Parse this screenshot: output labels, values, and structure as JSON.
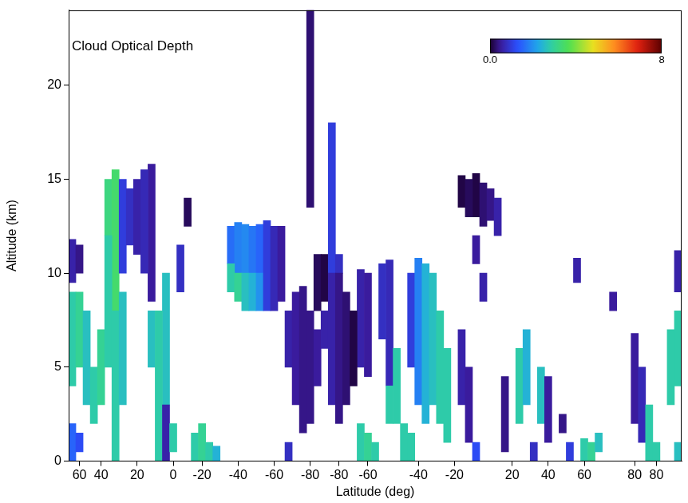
{
  "chart_data": {
    "type": "heatmap",
    "title": "Cloud Optical Depth",
    "x_label": "Latitude (deg)",
    "y_label": "Altitude (km)",
    "categories": [
      null,
      "60",
      null,
      null,
      "40",
      null,
      null,
      null,
      null,
      "20",
      null,
      null,
      null,
      null,
      "0",
      null,
      null,
      null,
      "-20",
      null,
      null,
      null,
      null,
      "-40",
      null,
      null,
      null,
      null,
      "-60",
      null,
      null,
      null,
      null,
      "-80",
      null,
      null,
      null,
      "-80",
      null,
      null,
      null,
      "-60",
      null,
      null,
      null,
      null,
      null,
      null,
      "-40",
      null,
      null,
      null,
      null,
      "-20",
      null,
      null,
      null,
      null,
      null,
      null,
      null,
      "20",
      null,
      null,
      null,
      null,
      "40",
      null,
      null,
      null,
      null,
      "60",
      null,
      null,
      null,
      null,
      null,
      null,
      "80",
      null,
      null,
      "80",
      null,
      null,
      null
    ],
    "ylim": [
      0,
      24
    ],
    "yticks": [
      0,
      5,
      10,
      15,
      20
    ],
    "grid": false,
    "colorbar": {
      "range": [
        0,
        8
      ],
      "ticks": [
        {
          "value": 0,
          "label": "0.0"
        },
        8
      ]
    },
    "cells": [
      {
        "column": 0,
        "y": [
          0,
          2
        ],
        "value": 1.5
      },
      {
        "column": 0,
        "y": [
          4,
          9
        ],
        "value": 2.8
      },
      {
        "column": 0,
        "y": [
          9.5,
          11.8
        ],
        "value": 0.6
      },
      {
        "column": 1,
        "y": [
          0.5,
          1.5
        ],
        "value": 1.2
      },
      {
        "column": 1,
        "y": [
          5,
          9
        ],
        "value": 3.0
      },
      {
        "column": 1,
        "y": [
          10,
          11.5
        ],
        "value": 0.4
      },
      {
        "column": 2,
        "y": [
          3,
          8
        ],
        "value": 2.6
      },
      {
        "column": 3,
        "y": [
          2,
          5
        ],
        "value": 2.8
      },
      {
        "column": 4,
        "y": [
          3,
          7
        ],
        "value": 3.0
      },
      {
        "column": 5,
        "y": [
          5,
          12
        ],
        "value": 2.8
      },
      {
        "column": 5,
        "y": [
          12,
          15
        ],
        "value": 3.2
      },
      {
        "column": 6,
        "y": [
          0,
          8
        ],
        "value": 2.8
      },
      {
        "column": 6,
        "y": [
          8,
          15.5
        ],
        "value": 3.4
      },
      {
        "column": 7,
        "y": [
          3,
          9
        ],
        "value": 2.6
      },
      {
        "column": 7,
        "y": [
          10,
          15
        ],
        "value": 1.0
      },
      {
        "column": 8,
        "y": [
          11.5,
          14.5
        ],
        "value": 0.8
      },
      {
        "column": 9,
        "y": [
          11,
          15
        ],
        "value": 0.6
      },
      {
        "column": 10,
        "y": [
          10,
          15.5
        ],
        "value": 0.7
      },
      {
        "column": 11,
        "y": [
          5,
          8
        ],
        "value": 2.6
      },
      {
        "column": 11,
        "y": [
          8.5,
          15.8
        ],
        "value": 0.5
      },
      {
        "column": 12,
        "y": [
          0,
          8
        ],
        "value": 2.8
      },
      {
        "column": 13,
        "y": [
          0,
          3
        ],
        "value": 0.6
      },
      {
        "column": 13,
        "y": [
          3,
          10
        ],
        "value": 2.6
      },
      {
        "column": 14,
        "y": [
          0.5,
          2
        ],
        "value": 2.8
      },
      {
        "column": 15,
        "y": [
          9,
          11.5
        ],
        "value": 0.8
      },
      {
        "column": 16,
        "y": [
          12.5,
          14
        ],
        "value": 0.2
      },
      {
        "column": 17,
        "y": [
          0,
          1.5
        ],
        "value": 2.8
      },
      {
        "column": 18,
        "y": [
          0,
          2
        ],
        "value": 3.0
      },
      {
        "column": 19,
        "y": [
          0,
          1
        ],
        "value": 2.8
      },
      {
        "column": 20,
        "y": [
          0,
          0.8
        ],
        "value": 2.4
      },
      {
        "column": 22,
        "y": [
          9,
          10.5
        ],
        "value": 2.8
      },
      {
        "column": 22,
        "y": [
          10.5,
          12.5
        ],
        "value": 1.6
      },
      {
        "column": 23,
        "y": [
          8.5,
          10
        ],
        "value": 3.0
      },
      {
        "column": 23,
        "y": [
          10,
          12.7
        ],
        "value": 1.8
      },
      {
        "column": 24,
        "y": [
          8,
          10
        ],
        "value": 2.6
      },
      {
        "column": 24,
        "y": [
          10,
          12.6
        ],
        "value": 1.9
      },
      {
        "column": 25,
        "y": [
          8,
          10
        ],
        "value": 2.4
      },
      {
        "column": 25,
        "y": [
          10,
          12.5
        ],
        "value": 1.7
      },
      {
        "column": 26,
        "y": [
          8,
          10
        ],
        "value": 2.0
      },
      {
        "column": 26,
        "y": [
          10,
          12.6
        ],
        "value": 1.5
      },
      {
        "column": 27,
        "y": [
          8,
          12.8
        ],
        "value": 1.0
      },
      {
        "column": 28,
        "y": [
          8,
          12.5
        ],
        "value": 0.7
      },
      {
        "column": 29,
        "y": [
          8.5,
          12.5
        ],
        "value": 0.5
      },
      {
        "column": 30,
        "y": [
          0,
          1
        ],
        "value": 0.8
      },
      {
        "column": 30,
        "y": [
          5,
          8
        ],
        "value": 0.6
      },
      {
        "column": 31,
        "y": [
          3,
          9
        ],
        "value": 0.5
      },
      {
        "column": 32,
        "y": [
          1.5,
          9.3
        ],
        "value": 0.4
      },
      {
        "column": 33,
        "y": [
          2,
          8
        ],
        "value": 0.4
      },
      {
        "column": 33,
        "y": [
          13.5,
          24
        ],
        "value": 0.3
      },
      {
        "column": 34,
        "y": [
          4,
          7
        ],
        "value": 0.5
      },
      {
        "column": 34,
        "y": [
          8,
          11
        ],
        "value": 0.2
      },
      {
        "column": 35,
        "y": [
          6,
          8
        ],
        "value": 0.6
      },
      {
        "column": 35,
        "y": [
          8.5,
          11
        ],
        "value": 0.1
      },
      {
        "column": 36,
        "y": [
          3,
          10
        ],
        "value": 0.6
      },
      {
        "column": 36,
        "y": [
          10,
          18
        ],
        "value": 1.0
      },
      {
        "column": 37,
        "y": [
          2,
          10
        ],
        "value": 0.4
      },
      {
        "column": 37,
        "y": [
          10,
          11
        ],
        "value": 0.8
      },
      {
        "column": 38,
        "y": [
          3,
          9
        ],
        "value": 0.3
      },
      {
        "column": 39,
        "y": [
          4,
          8
        ],
        "value": 0.1
      },
      {
        "column": 40,
        "y": [
          0,
          2
        ],
        "value": 2.8
      },
      {
        "column": 40,
        "y": [
          5,
          10.2
        ],
        "value": 0.6
      },
      {
        "column": 41,
        "y": [
          0,
          1.5
        ],
        "value": 3.0
      },
      {
        "column": 41,
        "y": [
          4.5,
          10
        ],
        "value": 0.5
      },
      {
        "column": 42,
        "y": [
          0,
          1
        ],
        "value": 2.8
      },
      {
        "column": 43,
        "y": [
          6.5,
          10.5
        ],
        "value": 0.8
      },
      {
        "column": 44,
        "y": [
          2,
          4
        ],
        "value": 2.8
      },
      {
        "column": 44,
        "y": [
          4,
          10.7
        ],
        "value": 0.7
      },
      {
        "column": 45,
        "y": [
          2,
          6
        ],
        "value": 2.8
      },
      {
        "column": 46,
        "y": [
          0,
          2
        ],
        "value": 2.8
      },
      {
        "column": 47,
        "y": [
          0,
          1.5
        ],
        "value": 2.8
      },
      {
        "column": 47,
        "y": [
          5,
          10
        ],
        "value": 1.0
      },
      {
        "column": 48,
        "y": [
          3,
          10.8
        ],
        "value": 1.8
      },
      {
        "column": 49,
        "y": [
          2,
          10.5
        ],
        "value": 2.4
      },
      {
        "column": 50,
        "y": [
          3,
          10
        ],
        "value": 2.6
      },
      {
        "column": 51,
        "y": [
          2,
          8
        ],
        "value": 2.8
      },
      {
        "column": 52,
        "y": [
          1,
          6
        ],
        "value": 2.8
      },
      {
        "column": 54,
        "y": [
          3,
          7
        ],
        "value": 0.6
      },
      {
        "column": 54,
        "y": [
          13.5,
          15.2
        ],
        "value": 0.1
      },
      {
        "column": 55,
        "y": [
          1,
          5
        ],
        "value": 0.5
      },
      {
        "column": 55,
        "y": [
          13,
          15
        ],
        "value": 0.2
      },
      {
        "column": 56,
        "y": [
          0,
          1
        ],
        "value": 1.2
      },
      {
        "column": 56,
        "y": [
          10.5,
          12
        ],
        "value": 0.5
      },
      {
        "column": 56,
        "y": [
          13,
          15.3
        ],
        "value": 0.1
      },
      {
        "column": 57,
        "y": [
          8.5,
          10
        ],
        "value": 0.6
      },
      {
        "column": 57,
        "y": [
          12.5,
          14.8
        ],
        "value": 0.3
      },
      {
        "column": 58,
        "y": [
          12.8,
          14.5
        ],
        "value": 0.4
      },
      {
        "column": 59,
        "y": [
          12,
          14
        ],
        "value": 0.6
      },
      {
        "column": 60,
        "y": [
          0.5,
          4.5
        ],
        "value": 0.4
      },
      {
        "column": 62,
        "y": [
          2,
          6
        ],
        "value": 2.8
      },
      {
        "column": 63,
        "y": [
          3,
          7
        ],
        "value": 2.4
      },
      {
        "column": 64,
        "y": [
          0,
          1
        ],
        "value": 0.8
      },
      {
        "column": 65,
        "y": [
          2,
          5
        ],
        "value": 2.6
      },
      {
        "column": 66,
        "y": [
          1,
          4.5
        ],
        "value": 0.5
      },
      {
        "column": 68,
        "y": [
          1.5,
          2.5
        ],
        "value": 0.4
      },
      {
        "column": 69,
        "y": [
          0,
          1
        ],
        "value": 1.0
      },
      {
        "column": 70,
        "y": [
          9.5,
          10.8
        ],
        "value": 0.6
      },
      {
        "column": 71,
        "y": [
          0,
          1.2
        ],
        "value": 2.8
      },
      {
        "column": 72,
        "y": [
          0,
          1
        ],
        "value": 3.0
      },
      {
        "column": 73,
        "y": [
          0.5,
          1.5
        ],
        "value": 2.6
      },
      {
        "column": 75,
        "y": [
          8,
          9
        ],
        "value": 0.5
      },
      {
        "column": 78,
        "y": [
          2,
          6.8
        ],
        "value": 0.5
      },
      {
        "column": 79,
        "y": [
          1,
          5
        ],
        "value": 0.7
      },
      {
        "column": 80,
        "y": [
          0,
          3
        ],
        "value": 2.8
      },
      {
        "column": 81,
        "y": [
          0,
          1
        ],
        "value": 2.8
      },
      {
        "column": 83,
        "y": [
          3,
          7
        ],
        "value": 2.8
      },
      {
        "column": 84,
        "y": [
          0,
          1
        ],
        "value": 2.6
      },
      {
        "column": 84,
        "y": [
          4,
          8
        ],
        "value": 2.8
      },
      {
        "column": 84,
        "y": [
          9,
          11.2
        ],
        "value": 0.6
      }
    ]
  }
}
